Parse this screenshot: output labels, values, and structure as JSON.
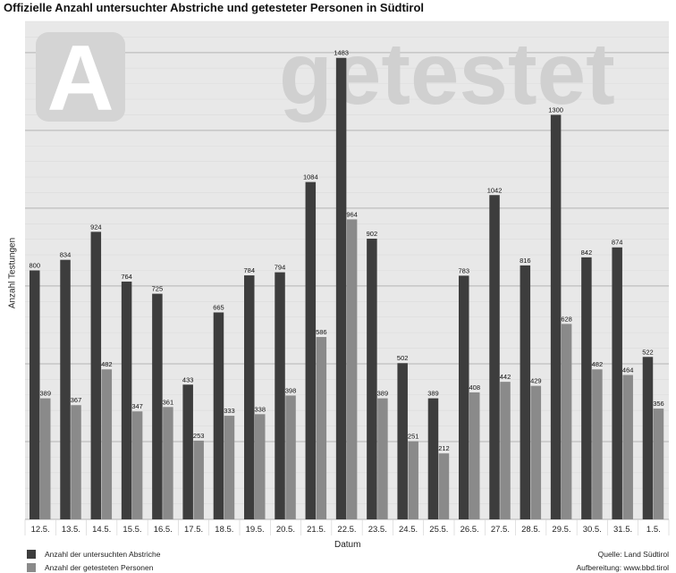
{
  "title": "Offizielle Anzahl untersuchter Abstriche und getesteter Personen in Südtirol",
  "watermark": {
    "letter": "A",
    "word": "getestet"
  },
  "colors": {
    "series1": "#3d3d3d",
    "series2": "#8a8a8a",
    "plot_bg": "#e8e8e8",
    "grid_major": "#b5b5b5",
    "grid_minor": "#dcdcdc"
  },
  "credits": {
    "source": "Quelle: Land Südtirol",
    "prepared": "Aufbereitung: www.bbd.tirol"
  },
  "chart_data": {
    "type": "bar",
    "title": "Offizielle Anzahl untersuchter Abstriche und getesteter Personen in Südtirol",
    "xlabel": "Datum",
    "ylabel": "Anzahl Testungen",
    "ylim": [
      0,
      1600
    ],
    "grid": true,
    "legend_position": "bottom-left",
    "categories": [
      "12.5.",
      "13.5.",
      "14.5.",
      "15.5.",
      "16.5.",
      "17.5.",
      "18.5.",
      "19.5.",
      "20.5.",
      "21.5.",
      "22.5.",
      "23.5.",
      "24.5.",
      "25.5.",
      "26.5.",
      "27.5.",
      "28.5.",
      "29.5.",
      "30.5.",
      "31.5.",
      "1.5."
    ],
    "series": [
      {
        "name": "Anzahl der untersuchten Abstriche",
        "color": "#3d3d3d",
        "values": [
          800,
          834,
          924,
          764,
          725,
          433,
          665,
          784,
          794,
          1084,
          1483,
          902,
          502,
          389,
          783,
          1042,
          816,
          1300,
          842,
          874,
          522
        ]
      },
      {
        "name": "Anzahl der getesteten Personen",
        "color": "#8a8a8a",
        "values": [
          389,
          367,
          482,
          347,
          361,
          253,
          333,
          338,
          398,
          586,
          964,
          389,
          251,
          212,
          408,
          442,
          429,
          628,
          482,
          464,
          356
        ]
      }
    ]
  }
}
